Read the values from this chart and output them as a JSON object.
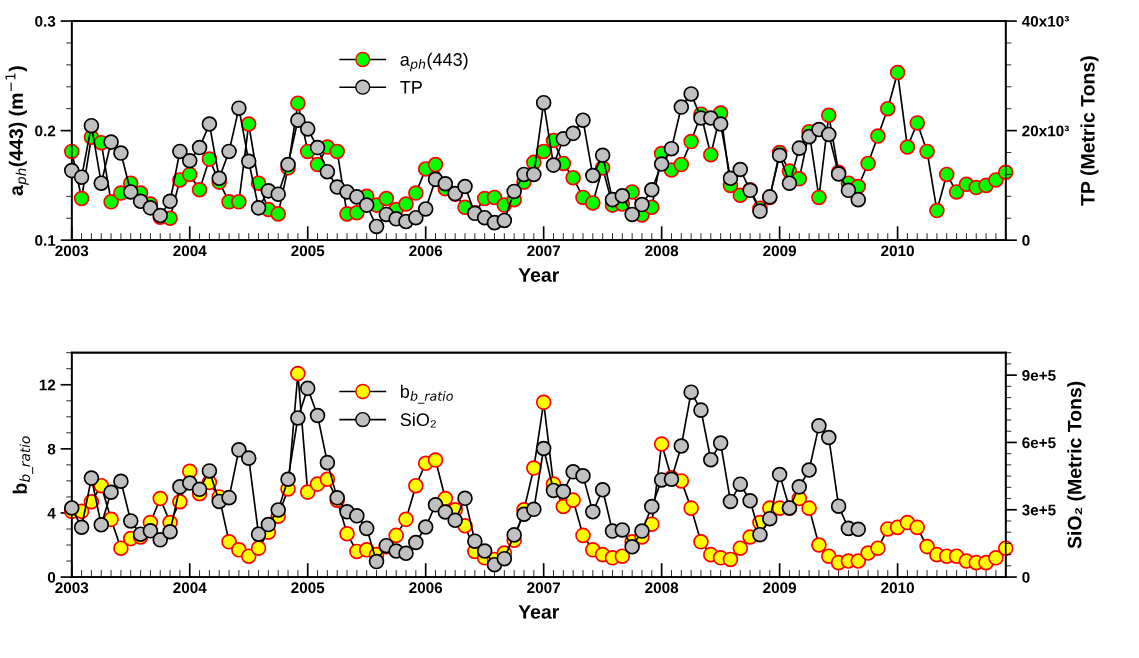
{
  "chart_data": [
    {
      "type": "line",
      "xlabel": "Year",
      "ylabel": "a$_{ph}$(443) (m$^{−1}$)",
      "y2label": "TP (Metric Tons)",
      "x": [
        "2003-01",
        "2003-02",
        "2003-03",
        "2003-04",
        "2003-05",
        "2003-06",
        "2003-07",
        "2003-08",
        "2003-09",
        "2003-10",
        "2003-11",
        "2003-12",
        "2004-01",
        "2004-02",
        "2004-03",
        "2004-04",
        "2004-05",
        "2004-06",
        "2004-07",
        "2004-08",
        "2004-09",
        "2004-10",
        "2004-11",
        "2004-12",
        "2005-01",
        "2005-02",
        "2005-03",
        "2005-04",
        "2005-05",
        "2005-06",
        "2005-07",
        "2005-08",
        "2005-09",
        "2005-10",
        "2005-11",
        "2005-12",
        "2006-01",
        "2006-02",
        "2006-03",
        "2006-04",
        "2006-05",
        "2006-06",
        "2006-07",
        "2006-08",
        "2006-09",
        "2006-10",
        "2006-11",
        "2006-12",
        "2007-01",
        "2007-02",
        "2007-03",
        "2007-04",
        "2007-05",
        "2007-06",
        "2007-07",
        "2007-08",
        "2007-09",
        "2007-10",
        "2007-11",
        "2007-12",
        "2008-01",
        "2008-02",
        "2008-03",
        "2008-04",
        "2008-05",
        "2008-06",
        "2008-07",
        "2008-08",
        "2008-09",
        "2008-10",
        "2008-11",
        "2008-12",
        "2009-01",
        "2009-02",
        "2009-03",
        "2009-04",
        "2009-05",
        "2009-06",
        "2009-07",
        "2009-08",
        "2009-09",
        "2009-10",
        "2009-11",
        "2009-12",
        "2010-01",
        "2010-02",
        "2010-03",
        "2010-04",
        "2010-05",
        "2010-06",
        "2010-07",
        "2010-08",
        "2010-09",
        "2010-10",
        "2010-11",
        "2010-12"
      ],
      "series": [
        {
          "name": "a$_{ph}$(443)",
          "color": "#00ff00",
          "values": [
            0.181,
            0.138,
            0.194,
            0.189,
            0.135,
            0.143,
            0.152,
            0.143,
            0.133,
            0.121,
            0.12,
            0.155,
            0.16,
            0.146,
            0.174,
            0.153,
            0.135,
            0.135,
            0.206,
            0.152,
            0.128,
            0.124,
            0.166,
            0.225,
            0.181,
            0.169,
            0.185,
            0.181,
            0.124,
            0.125,
            0.14,
            0.132,
            0.138,
            0.128,
            0.133,
            0.143,
            0.165,
            0.169,
            0.147,
            0.142,
            0.13,
            0.125,
            0.138,
            0.139,
            0.132,
            0.137,
            0.153,
            0.171,
            0.181,
            0.191,
            0.17,
            0.157,
            0.139,
            0.134,
            0.166,
            0.132,
            0.133,
            0.144,
            0.123,
            0.13,
            0.179,
            0.164,
            0.169,
            0.19,
            0.215,
            0.178,
            0.216,
            0.15,
            0.141,
            0.146,
            0.129,
            0.139,
            0.18,
            0.163,
            0.156,
            0.199,
            0.139,
            0.214,
            0.162,
            0.152,
            0.149,
            0.17,
            0.195,
            0.22,
            0.253,
            0.185,
            0.207,
            0.181,
            0.127,
            0.16,
            0.144,
            0.151,
            0.148,
            0.15,
            0.155,
            0.162
          ]
        },
        {
          "name": "TP",
          "color": "#c0c0c0",
          "axis": "y2",
          "values": [
            12700,
            11500,
            20900,
            10400,
            17900,
            15900,
            8800,
            7100,
            5900,
            4500,
            7100,
            16200,
            14500,
            16900,
            21200,
            11300,
            16200,
            24100,
            14400,
            5900,
            9000,
            8400,
            13800,
            21900,
            20300,
            16900,
            12500,
            9700,
            8800,
            7900,
            6400,
            2500,
            4700,
            3900,
            3400,
            4100,
            5700,
            11100,
            10300,
            8500,
            9800,
            4900,
            4100,
            3200,
            3600,
            8900,
            12000,
            12000,
            25100,
            13700,
            18500,
            19500,
            21900,
            11800,
            15500,
            7400,
            8100,
            4700,
            6500,
            9200,
            13900,
            16700,
            24300,
            26700,
            22300,
            22300,
            21200,
            11300,
            12900,
            9100,
            5300,
            7900,
            15500,
            10400,
            16800,
            18900,
            20200,
            19300,
            12100,
            9100,
            7400,
            null,
            null,
            null,
            null,
            null,
            null,
            null,
            null,
            null,
            null,
            null,
            null,
            null,
            null,
            null
          ]
        }
      ],
      "xlim": [
        "2003-01",
        "2010-12"
      ],
      "xticks": [
        {
          "value": "2003",
          "label": "2003"
        },
        {
          "value": "2004",
          "label": "2004"
        },
        {
          "value": "2005",
          "label": "2005"
        },
        {
          "value": "2006",
          "label": "2006"
        },
        {
          "value": "2007",
          "label": "2007"
        },
        {
          "value": "2008",
          "label": "2008"
        },
        {
          "value": "2009",
          "label": "2009"
        },
        {
          "value": "2010",
          "label": "2010"
        }
      ],
      "ylim": [
        0.1,
        0.3
      ],
      "yticks": [
        0.1,
        0.2,
        0.3
      ],
      "y2lim": [
        0,
        40000
      ],
      "y2ticks": [
        0,
        {
          "value": 20000,
          "label": "20x10³"
        },
        {
          "value": 40000,
          "label": "40x10³"
        }
      ],
      "marker": "circle",
      "line_style": "solid",
      "grid": false,
      "legend": "top"
    },
    {
      "type": "line",
      "xlabel": "Year",
      "ylabel": "b$_{b_ratio}$",
      "y2label": "SiO₂ (Metric Tons)",
      "x": [
        "2003-01",
        "2003-02",
        "2003-03",
        "2003-04",
        "2003-05",
        "2003-06",
        "2003-07",
        "2003-08",
        "2003-09",
        "2003-10",
        "2003-11",
        "2003-12",
        "2004-01",
        "2004-02",
        "2004-03",
        "2004-04",
        "2004-05",
        "2004-06",
        "2004-07",
        "2004-08",
        "2004-09",
        "2004-10",
        "2004-11",
        "2004-12",
        "2005-01",
        "2005-02",
        "2005-03",
        "2005-04",
        "2005-05",
        "2005-06",
        "2005-07",
        "2005-08",
        "2005-09",
        "2005-10",
        "2005-11",
        "2005-12",
        "2006-01",
        "2006-02",
        "2006-03",
        "2006-04",
        "2006-05",
        "2006-06",
        "2006-07",
        "2006-08",
        "2006-09",
        "2006-10",
        "2006-11",
        "2006-12",
        "2007-01",
        "2007-02",
        "2007-03",
        "2007-04",
        "2007-05",
        "2007-06",
        "2007-07",
        "2007-08",
        "2007-09",
        "2007-10",
        "2007-11",
        "2007-12",
        "2008-01",
        "2008-02",
        "2008-03",
        "2008-04",
        "2008-05",
        "2008-06",
        "2008-07",
        "2008-08",
        "2008-09",
        "2008-10",
        "2008-11",
        "2008-12",
        "2009-01",
        "2009-02",
        "2009-03",
        "2009-04",
        "2009-05",
        "2009-06",
        "2009-07",
        "2009-08",
        "2009-09",
        "2009-10",
        "2009-11",
        "2009-12",
        "2010-01",
        "2010-02",
        "2010-03",
        "2010-04",
        "2010-05",
        "2010-06",
        "2010-07",
        "2010-08",
        "2010-09",
        "2010-10",
        "2010-11",
        "2010-12"
      ],
      "series": [
        {
          "name": "b$_{b_ratio}$",
          "color": "#ffff00",
          "values": [
            4.1,
            4.1,
            4.7,
            5.7,
            3.6,
            1.8,
            2.4,
            2.5,
            3.4,
            4.9,
            3.4,
            4.7,
            6.6,
            5.2,
            5.9,
            5.0,
            2.2,
            1.7,
            1.3,
            1.8,
            2.8,
            3.8,
            5.5,
            12.7,
            5.3,
            5.8,
            6.1,
            4.8,
            2.7,
            1.6,
            1.7,
            1.4,
            1.9,
            2.6,
            3.6,
            5.7,
            7.1,
            7.3,
            4.9,
            4.2,
            3.2,
            1.6,
            1.2,
            1.1,
            1.5,
            2.3,
            4.2,
            6.8,
            10.9,
            5.8,
            4.4,
            4.8,
            2.6,
            1.7,
            1.4,
            1.2,
            1.3,
            2.2,
            2.5,
            3.3,
            8.3,
            6.2,
            6.0,
            4.3,
            2.2,
            1.4,
            1.2,
            1.1,
            1.8,
            2.5,
            3.4,
            4.3,
            4.3,
            4.3,
            4.9,
            4.3,
            2.0,
            1.3,
            0.9,
            1.0,
            1.0,
            1.5,
            1.8,
            3.0,
            3.1,
            3.4,
            3.1,
            1.9,
            1.4,
            1.3,
            1.3,
            1.0,
            0.9,
            0.9,
            1.2,
            1.8
          ]
        },
        {
          "name": "SiO₂",
          "color": "#c0c0c0",
          "axis": "y2",
          "values": [
            308000,
            222000,
            441000,
            233000,
            378000,
            427000,
            250000,
            191000,
            206000,
            166000,
            202000,
            402000,
            419000,
            391000,
            473000,
            337000,
            354000,
            567000,
            530000,
            191000,
            234000,
            299000,
            436000,
            709000,
            841000,
            720000,
            510000,
            353000,
            291000,
            273000,
            217000,
            69000,
            140000,
            116000,
            106000,
            154000,
            223000,
            322000,
            290000,
            253000,
            351000,
            160000,
            116000,
            55000,
            82000,
            188000,
            280000,
            302000,
            573000,
            386000,
            381000,
            469000,
            451000,
            291000,
            389000,
            205000,
            210000,
            135000,
            205000,
            314000,
            433000,
            436000,
            584000,
            824000,
            744000,
            523000,
            597000,
            337000,
            414000,
            340000,
            189000,
            260000,
            457000,
            308000,
            402000,
            477000,
            674000,
            622000,
            316000,
            217000,
            213000,
            null,
            null,
            null,
            null,
            null,
            null,
            null,
            null,
            null,
            null,
            null,
            null,
            null,
            null,
            null
          ]
        }
      ],
      "xlim": [
        "2003-01",
        "2010-12"
      ],
      "xticks": [
        {
          "value": "2003",
          "label": "2003"
        },
        {
          "value": "2004",
          "label": "2004"
        },
        {
          "value": "2005",
          "label": "2005"
        },
        {
          "value": "2006",
          "label": "2006"
        },
        {
          "value": "2007",
          "label": "2007"
        },
        {
          "value": "2008",
          "label": "2008"
        },
        {
          "value": "2009",
          "label": "2009"
        },
        {
          "value": "2010",
          "label": "2010"
        }
      ],
      "ylim": [
        0,
        14
      ],
      "yticks": [
        0,
        4,
        8,
        12
      ],
      "y2lim": [
        0,
        1000000
      ],
      "y2ticks": [
        0,
        {
          "value": 300000,
          "label": "3e+5"
        },
        {
          "value": 600000,
          "label": "6e+5"
        },
        {
          "value": 900000,
          "label": "9e+5"
        }
      ],
      "marker": "circle",
      "line_style": "solid",
      "grid": false,
      "legend": "top"
    }
  ]
}
